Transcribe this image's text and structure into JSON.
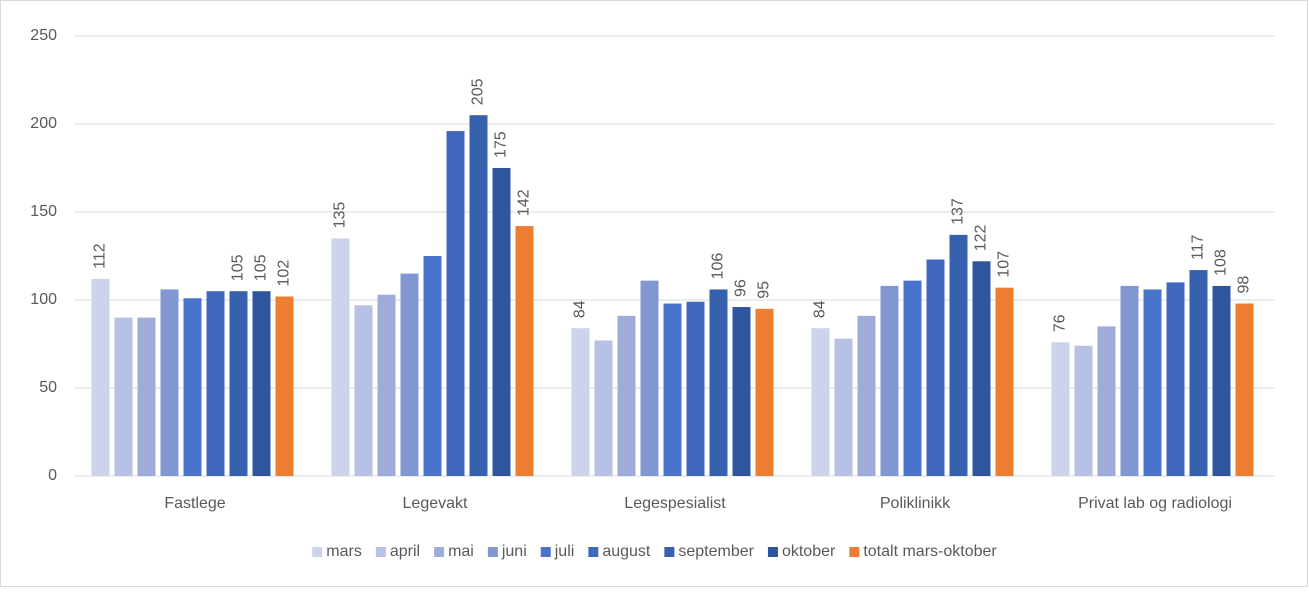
{
  "chart_data": {
    "type": "bar",
    "categories": [
      "Fastlege",
      "Legevakt",
      "Legespesialist",
      "Poliklinikk",
      "Privat lab og radiologi"
    ],
    "series": [
      {
        "name": "mars",
        "color": "#cdd3ea",
        "labels": true,
        "values": [
          112,
          135,
          84,
          84,
          76
        ]
      },
      {
        "name": "april",
        "color": "#b7c1e4",
        "values": [
          90,
          97,
          77,
          78,
          74
        ]
      },
      {
        "name": "mai",
        "color": "#9dacd9",
        "values": [
          90,
          103,
          91,
          91,
          85
        ]
      },
      {
        "name": "juni",
        "color": "#8197d3",
        "values": [
          106,
          115,
          111,
          108,
          108
        ]
      },
      {
        "name": "juli",
        "color": "#4a74cc",
        "values": [
          101,
          125,
          98,
          111,
          106
        ]
      },
      {
        "name": "august",
        "color": "#3f68bd",
        "values": [
          105,
          196,
          99,
          123,
          110
        ]
      },
      {
        "name": "september",
        "color": "#3861ad",
        "labels": true,
        "values": [
          105,
          205,
          106,
          137,
          117
        ]
      },
      {
        "name": "oktober",
        "color": "#2f559f",
        "labels": true,
        "values": [
          105,
          175,
          96,
          122,
          108
        ]
      },
      {
        "name": "totalt mars-oktober",
        "color": "#ed7d31",
        "labels": true,
        "values": [
          102,
          142,
          95,
          107,
          98
        ]
      }
    ],
    "ylim": [
      0,
      250
    ],
    "yticks": [
      0,
      50,
      100,
      150,
      200,
      250
    ],
    "grid": true,
    "legend": "bottom"
  }
}
